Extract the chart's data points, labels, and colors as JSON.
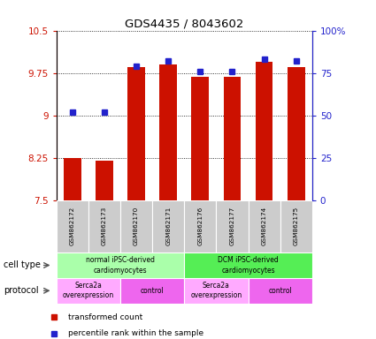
{
  "title": "GDS4435 / 8043602",
  "samples": [
    "GSM862172",
    "GSM862173",
    "GSM862170",
    "GSM862171",
    "GSM862176",
    "GSM862177",
    "GSM862174",
    "GSM862175"
  ],
  "transformed_counts": [
    8.25,
    8.2,
    9.85,
    9.9,
    9.68,
    9.68,
    9.95,
    9.85
  ],
  "percentile_ranks": [
    52,
    52,
    79,
    82,
    76,
    76,
    83,
    82
  ],
  "ylim_left": [
    7.5,
    10.5
  ],
  "yticks_left": [
    7.5,
    8.25,
    9.0,
    9.75,
    10.5
  ],
  "ytick_labels_left": [
    "7.5",
    "8.25",
    "9",
    "9.75",
    "10.5"
  ],
  "ylim_right": [
    0,
    100
  ],
  "yticks_right": [
    0,
    25,
    50,
    75,
    100
  ],
  "ytick_labels_right": [
    "0",
    "25",
    "50",
    "75",
    "100%"
  ],
  "bar_color": "#cc1100",
  "dot_color": "#2222cc",
  "bar_bottom": 7.5,
  "cell_type_groups": [
    {
      "label": "normal iPSC-derived\ncardiomyocytes",
      "start": 0,
      "end": 4,
      "color": "#aaffaa"
    },
    {
      "label": "DCM iPSC-derived\ncardiomyocytes",
      "start": 4,
      "end": 8,
      "color": "#55ee55"
    }
  ],
  "protocol_groups": [
    {
      "label": "Serca2a\noverexpression",
      "start": 0,
      "end": 2,
      "color": "#ffaaff"
    },
    {
      "label": "control",
      "start": 2,
      "end": 4,
      "color": "#ee66ee"
    },
    {
      "label": "Serca2a\noverexpression",
      "start": 4,
      "end": 6,
      "color": "#ffaaff"
    },
    {
      "label": "control",
      "start": 6,
      "end": 8,
      "color": "#ee66ee"
    }
  ],
  "legend_red_label": "transformed count",
  "legend_blue_label": "percentile rank within the sample",
  "row_label_celltype": "cell type",
  "row_label_protocol": "protocol",
  "background_color": "#ffffff",
  "tick_color_left": "#cc1100",
  "tick_color_right": "#2222cc"
}
